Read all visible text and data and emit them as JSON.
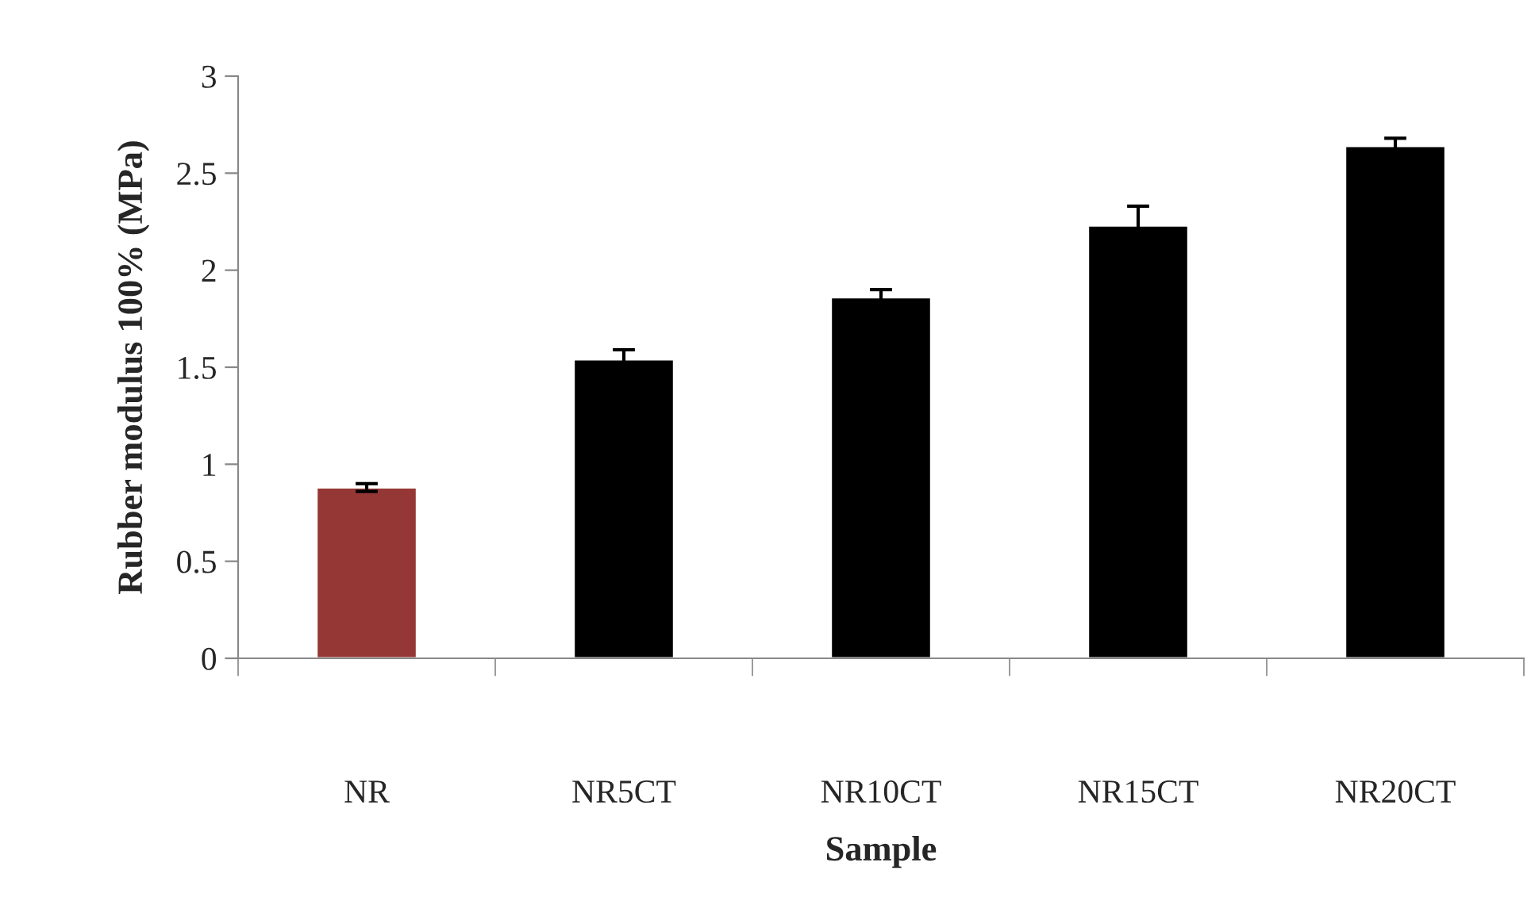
{
  "chart_data": {
    "type": "bar",
    "xlabel": "Sample",
    "ylabel": "Rubber modulus 100% (MPa)",
    "categories": [
      "NR",
      "NR5CT",
      "NR10CT",
      "NR15CT",
      "NR20CT"
    ],
    "values": [
      0.88,
      1.54,
      1.86,
      2.23,
      2.64
    ],
    "errors": [
      0.02,
      0.05,
      0.04,
      0.1,
      0.04
    ],
    "colors": [
      "#953735",
      "#000000",
      "#000000",
      "#000000",
      "#000000"
    ],
    "ylim": [
      0,
      3
    ],
    "yticks": [
      0,
      0.5,
      1,
      1.5,
      2,
      2.5,
      3
    ],
    "grid": false,
    "legend": false
  }
}
